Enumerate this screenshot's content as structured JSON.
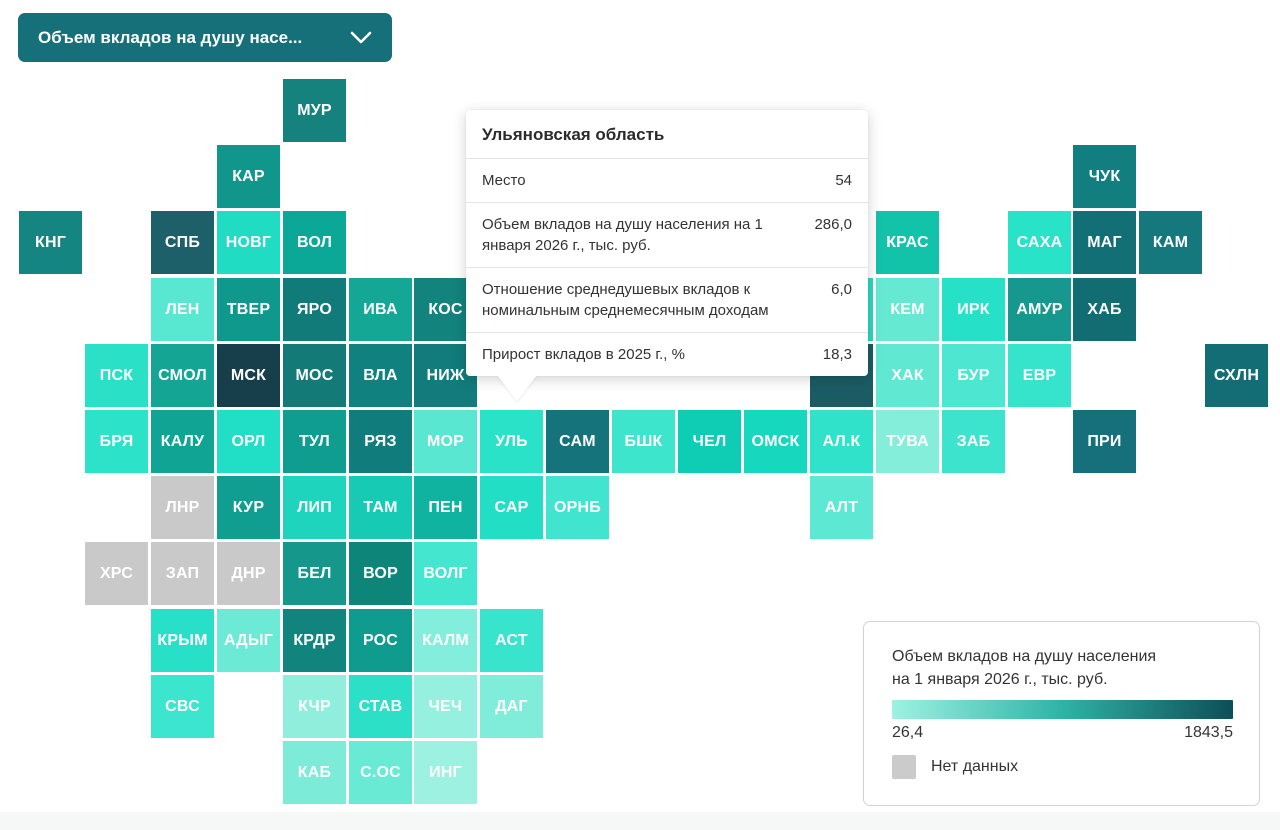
{
  "dropdown": {
    "label": "Объем вкладов на душу насе..."
  },
  "tooltip": {
    "title": "Ульяновская область",
    "rows": [
      {
        "label": "Место",
        "value": "54"
      },
      {
        "label": "Объем вкладов на душу населения на 1 января 2026 г., тыс. руб.",
        "value": "286,0"
      },
      {
        "label": "Отношение среднедушевых вкладов к номинальным среднемесячным доходам",
        "value": "6,0"
      },
      {
        "label": "Прирост вкладов в 2025 г., %",
        "value": "18,3"
      }
    ]
  },
  "legend": {
    "title_line1": "Объем вкладов на душу населения",
    "title_line2": "на 1 января 2026 г., тыс. руб.",
    "min": "26,4",
    "max": "1843,5",
    "no_data_label": "Нет данных",
    "gradient_start": "#9df2e2",
    "gradient_mid": "#2fb3a6",
    "gradient_end": "#0d4e57",
    "no_data_color": "#cbcbcb"
  },
  "chart_data": {
    "type": "heatmap",
    "title": "Объем вкладов на душу населения на 1 января 2026 г., тыс. руб.",
    "colorbar_range": [
      26.4,
      1843.5
    ],
    "legend_position": "bottom-right",
    "no_data_label": "Нет данных",
    "highlighted_region": {
      "name": "Ульяновская область",
      "tile_code": "УЛЬ",
      "place": 54,
      "deposits_per_capita_thousand_rub": 286.0,
      "deposits_to_monthly_income_ratio": 6.0,
      "deposit_growth_2025_percent": 18.3
    },
    "tiles": [
      {
        "code": "МУР",
        "col": 4,
        "row": 0,
        "color": "#15827e"
      },
      {
        "code": "КАР",
        "col": 3,
        "row": 1,
        "color": "#10968a"
      },
      {
        "code": "ЧУК",
        "col": 16,
        "row": 1,
        "color": "#137e80"
      },
      {
        "code": "КНГ",
        "col": 0,
        "row": 2,
        "color": "#148580"
      },
      {
        "code": "СПБ",
        "col": 2,
        "row": 2,
        "color": "#1d6069"
      },
      {
        "code": "НОВГ",
        "col": 3,
        "row": 2,
        "color": "#1fdcc3"
      },
      {
        "code": "ВОЛ",
        "col": 4,
        "row": 2,
        "color": "#0ba897"
      },
      {
        "code": "КРАС",
        "col": 13,
        "row": 2,
        "color": "#12c3aa"
      },
      {
        "code": "САХА",
        "col": 15,
        "row": 2,
        "color": "#29e3c9"
      },
      {
        "code": "МАГ",
        "col": 16,
        "row": 2,
        "color": "#126f76"
      },
      {
        "code": "КАМ",
        "col": 17,
        "row": 2,
        "color": "#15787d"
      },
      {
        "code": "ЛЕН",
        "col": 2,
        "row": 3,
        "color": "#58e7d0"
      },
      {
        "code": "ТВЕР",
        "col": 3,
        "row": 3,
        "color": "#0f988c"
      },
      {
        "code": "ЯРО",
        "col": 4,
        "row": 3,
        "color": "#107b78"
      },
      {
        "code": "ИВА",
        "col": 5,
        "row": 3,
        "color": "#14a795"
      },
      {
        "code": "КОС",
        "col": 6,
        "row": 3,
        "color": "#12837d"
      },
      {
        "code": "",
        "col": 12,
        "row": 3,
        "color": "#2bd9c1"
      },
      {
        "code": "КЕМ",
        "col": 13,
        "row": 3,
        "color": "#66e9d3"
      },
      {
        "code": "ИРК",
        "col": 14,
        "row": 3,
        "color": "#26e1c8"
      },
      {
        "code": "АМУР",
        "col": 15,
        "row": 3,
        "color": "#16988e"
      },
      {
        "code": "ХАБ",
        "col": 16,
        "row": 3,
        "color": "#126d72"
      },
      {
        "code": "ПСК",
        "col": 1,
        "row": 4,
        "color": "#2ae0c7"
      },
      {
        "code": "СМОЛ",
        "col": 2,
        "row": 4,
        "color": "#14a595"
      },
      {
        "code": "МСК",
        "col": 3,
        "row": 4,
        "color": "#173f4b"
      },
      {
        "code": "МОС",
        "col": 4,
        "row": 4,
        "color": "#137a78"
      },
      {
        "code": "ВЛА",
        "col": 5,
        "row": 4,
        "color": "#118180"
      },
      {
        "code": "НИЖ",
        "col": 6,
        "row": 4,
        "color": "#117c7b"
      },
      {
        "code": "",
        "col": 12,
        "row": 4,
        "color": "#1b5c64"
      },
      {
        "code": "ХАК",
        "col": 13,
        "row": 4,
        "color": "#60e8d2"
      },
      {
        "code": "БУР",
        "col": 14,
        "row": 4,
        "color": "#4de6d0"
      },
      {
        "code": "ЕВР",
        "col": 15,
        "row": 4,
        "color": "#36e3cb"
      },
      {
        "code": "СХЛН",
        "col": 18,
        "row": 4,
        "color": "#136d74"
      },
      {
        "code": "БРЯ",
        "col": 1,
        "row": 5,
        "color": "#2ce3c9"
      },
      {
        "code": "КАЛУ",
        "col": 2,
        "row": 5,
        "color": "#0fa493"
      },
      {
        "code": "ОРЛ",
        "col": 3,
        "row": 5,
        "color": "#21dfc6"
      },
      {
        "code": "ТУЛ",
        "col": 4,
        "row": 5,
        "color": "#0f9d8f"
      },
      {
        "code": "РЯЗ",
        "col": 5,
        "row": 5,
        "color": "#107d7c"
      },
      {
        "code": "МОР",
        "col": 6,
        "row": 5,
        "color": "#59e7d1"
      },
      {
        "code": "УЛЬ",
        "col": 7,
        "row": 5,
        "color": "#29e2c8"
      },
      {
        "code": "САМ",
        "col": 8,
        "row": 5,
        "color": "#14737b"
      },
      {
        "code": "БШК",
        "col": 9,
        "row": 5,
        "color": "#3ee5cd"
      },
      {
        "code": "ЧЕЛ",
        "col": 10,
        "row": 5,
        "color": "#0ecdb4"
      },
      {
        "code": "ОМСК",
        "col": 11,
        "row": 5,
        "color": "#16d8bf"
      },
      {
        "code": "АЛ.К",
        "col": 12,
        "row": 5,
        "color": "#2fe2c9"
      },
      {
        "code": "ТУВА",
        "col": 13,
        "row": 5,
        "color": "#85eedb"
      },
      {
        "code": "ЗАБ",
        "col": 14,
        "row": 5,
        "color": "#3ce4cd"
      },
      {
        "code": "ПРИ",
        "col": 16,
        "row": 5,
        "color": "#15707b"
      },
      {
        "code": "ЛНР",
        "col": 2,
        "row": 6,
        "color": "#c9c9c9"
      },
      {
        "code": "КУР",
        "col": 3,
        "row": 6,
        "color": "#0f9e8f"
      },
      {
        "code": "ЛИП",
        "col": 4,
        "row": 6,
        "color": "#1ed4bc"
      },
      {
        "code": "ТАМ",
        "col": 5,
        "row": 6,
        "color": "#17cab4"
      },
      {
        "code": "ПЕН",
        "col": 6,
        "row": 6,
        "color": "#10b2a0"
      },
      {
        "code": "САР",
        "col": 7,
        "row": 6,
        "color": "#22dec5"
      },
      {
        "code": "ОРНБ",
        "col": 8,
        "row": 6,
        "color": "#41e5cf"
      },
      {
        "code": "АЛТ",
        "col": 12,
        "row": 6,
        "color": "#5ce8d3"
      },
      {
        "code": "ХРС",
        "col": 1,
        "row": 7,
        "color": "#c9c9c9"
      },
      {
        "code": "ЗАП",
        "col": 2,
        "row": 7,
        "color": "#c9c9c9"
      },
      {
        "code": "ДНР",
        "col": 3,
        "row": 7,
        "color": "#c9c9c9"
      },
      {
        "code": "БЕЛ",
        "col": 4,
        "row": 7,
        "color": "#16978c"
      },
      {
        "code": "ВОР",
        "col": 5,
        "row": 7,
        "color": "#0e8579"
      },
      {
        "code": "ВОЛГ",
        "col": 6,
        "row": 7,
        "color": "#45e6d0"
      },
      {
        "code": "КРЫМ",
        "col": 2,
        "row": 8,
        "color": "#28e0c7"
      },
      {
        "code": "АДЫГ",
        "col": 3,
        "row": 8,
        "color": "#6cead6"
      },
      {
        "code": "КРДР",
        "col": 4,
        "row": 8,
        "color": "#11857d"
      },
      {
        "code": "РОС",
        "col": 5,
        "row": 8,
        "color": "#0f9b8e"
      },
      {
        "code": "КАЛМ",
        "col": 6,
        "row": 8,
        "color": "#82eedb"
      },
      {
        "code": "АСТ",
        "col": 7,
        "row": 8,
        "color": "#38e4cc"
      },
      {
        "code": "СВС",
        "col": 2,
        "row": 9,
        "color": "#3ce5ce"
      },
      {
        "code": "КЧР",
        "col": 4,
        "row": 9,
        "color": "#8fefdc"
      },
      {
        "code": "СТАВ",
        "col": 5,
        "row": 9,
        "color": "#2cdfc7"
      },
      {
        "code": "ЧЕЧ",
        "col": 6,
        "row": 9,
        "color": "#96f0df"
      },
      {
        "code": "ДАГ",
        "col": 7,
        "row": 9,
        "color": "#80edda"
      },
      {
        "code": "КАБ",
        "col": 4,
        "row": 10,
        "color": "#7cecd9"
      },
      {
        "code": "С.ОС",
        "col": 5,
        "row": 10,
        "color": "#69ead5"
      },
      {
        "code": "ИНГ",
        "col": 6,
        "row": 10,
        "color": "#9cf1e1"
      }
    ]
  }
}
